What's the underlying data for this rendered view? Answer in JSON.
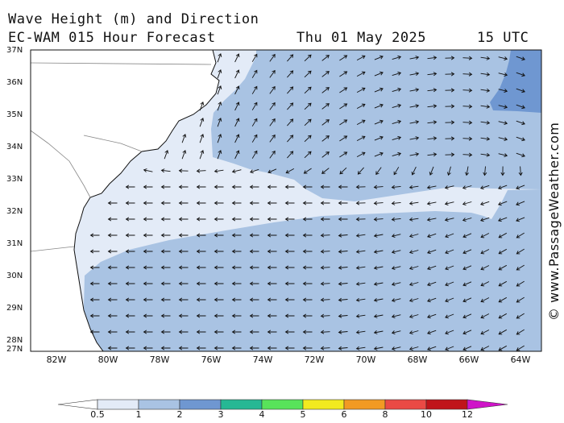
{
  "header": {
    "title": "Wave Height (m) and Direction",
    "model": "EC-WAM 015 Hour Forecast",
    "date": "Thu 01 May 2025",
    "time": "15 UTC"
  },
  "credit": "© www.PassageWeather.com",
  "axes": {
    "lat_labels": [
      "37N",
      "36N",
      "35N",
      "34N",
      "33N",
      "32N",
      "31N",
      "30N",
      "29N",
      "28N",
      "27N"
    ],
    "lon_labels": [
      "82W",
      "80W",
      "78W",
      "76W",
      "74W",
      "72W",
      "70W",
      "68W",
      "66W",
      "64W"
    ]
  },
  "legend": {
    "breaks": [
      "0.5",
      "1",
      "2",
      "3",
      "4",
      "5",
      "6",
      "8",
      "10",
      "12"
    ],
    "colors": [
      "#e3ebf7",
      "#a9c3e3",
      "#6f97d1",
      "#26b894",
      "#58e35a",
      "#f2ea1f",
      "#f29a23",
      "#ea4a45",
      "#c0141a",
      "#cf14c8"
    ],
    "units": "m"
  }
}
